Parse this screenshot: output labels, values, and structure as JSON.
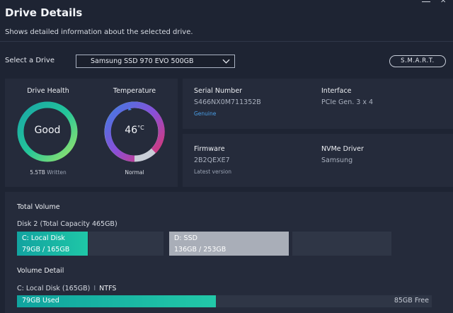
{
  "window": {
    "title": "Drive Details",
    "subtitle": "Shows detailed information about the selected drive."
  },
  "drive_select": {
    "label": "Select a Drive",
    "selected": "Samsung SSD 970 EVO 500GB",
    "smart_button": "S.M.A.R.T."
  },
  "health": {
    "title": "Drive Health",
    "status": "Good",
    "written_value": "5.5TB",
    "written_label": "Written"
  },
  "temperature": {
    "title": "Temperature",
    "value": "46",
    "unit": "°C",
    "status": "Normal"
  },
  "serial": {
    "label": "Serial Number",
    "value": "S466NX0M711352B",
    "note": "Genuine"
  },
  "interface": {
    "label": "Interface",
    "value": "PCIe Gen. 3 x 4"
  },
  "firmware": {
    "label": "Firmware",
    "value": "2B2QEXE7",
    "note": "Latest version"
  },
  "nvme": {
    "label": "NVMe Driver",
    "value": "Samsung"
  },
  "total_volume": {
    "title": "Total Volume",
    "disk_label": "Disk 2 (Total Capacity 465GB)",
    "partitions": [
      {
        "name": "C: Local Disk",
        "usage": "79GB / 165GB"
      },
      {
        "name": "D: SSD",
        "usage": "136GB / 253GB"
      }
    ]
  },
  "volume_detail": {
    "title": "Volume Detail",
    "volume": "C: Local Disk (165GB)",
    "separator": "I",
    "filesystem": "NTFS",
    "used": "79GB Used",
    "free": "85GB Free",
    "used_fraction": 0.48
  },
  "colors": {
    "background": "#1e2433",
    "panel": "#252b3b",
    "accent_teal": "#1fc7a7",
    "accent_blue": "#4a9fe8",
    "temp_warm": "#e0356a"
  }
}
